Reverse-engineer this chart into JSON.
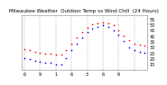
{
  "title": "Milwaukee Weather  Outdoor Temp vs Wind Chill  (24 Hours)",
  "bg_color": "#ffffff",
  "plot_bg": "#ffffff",
  "grid_color": "#777777",
  "temp_color": "#ff0000",
  "wind_color": "#0000ff",
  "label_color": "#000000",
  "ylim": [
    10,
    58
  ],
  "yticks": [
    15,
    20,
    25,
    30,
    35,
    40,
    45,
    50,
    55
  ],
  "ytick_labels": [
    "15",
    "20",
    "25",
    "30",
    "35",
    "40",
    "45",
    "50",
    "55"
  ],
  "time_hours": [
    0,
    1,
    2,
    3,
    4,
    5,
    6,
    7,
    8,
    9,
    10,
    11,
    12,
    13,
    14,
    15,
    16,
    17,
    18,
    19,
    20,
    21,
    22,
    23
  ],
  "temp_values": [
    28,
    27,
    26,
    25,
    24,
    24,
    23,
    23,
    27,
    33,
    38,
    43,
    47,
    50,
    51,
    52,
    51,
    49,
    45,
    40,
    36,
    33,
    32,
    31
  ],
  "wind_values": [
    20,
    19,
    18,
    17,
    16,
    16,
    15,
    15,
    20,
    27,
    33,
    38,
    43,
    46,
    48,
    49,
    48,
    45,
    41,
    35,
    30,
    27,
    26,
    25
  ],
  "vgrid_positions": [
    0,
    3,
    6,
    9,
    12,
    15,
    18,
    21
  ],
  "xtick_positions": [
    0,
    3,
    6,
    9,
    12,
    15,
    18,
    21
  ],
  "xtick_labels": [
    "6",
    "9",
    "1",
    "6",
    "3",
    "6",
    "9",
    ""
  ],
  "title_fontsize": 4.0,
  "tick_fontsize": 3.5,
  "dot_size": 1.5,
  "xlim": [
    -0.5,
    23.5
  ]
}
